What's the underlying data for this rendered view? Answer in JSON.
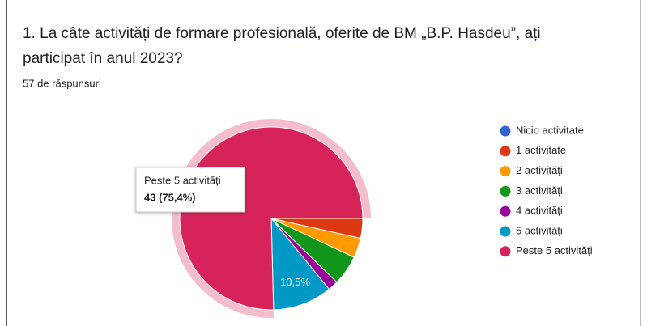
{
  "chart_data": {
    "type": "pie",
    "title": "1.  La câte activități de formare profesională, oferite de BM „B.P. Hasdeu”, ați",
    "title_line2": "participat în anul 2023?",
    "subtitle": "57 de răspunsuri",
    "categories": [
      "Nicio activitate",
      "1 activitate",
      "2 activități",
      "3 activități",
      "4 activități",
      "5 activități",
      "Peste 5 activități"
    ],
    "values": [
      0,
      3.5,
      3.5,
      5.3,
      1.8,
      10.5,
      75.4
    ],
    "value_labels": [
      null,
      null,
      null,
      null,
      null,
      "10,5%",
      "43 (75,4%)"
    ],
    "colors": [
      "#3366cc",
      "#dc3912",
      "#ff9900",
      "#109618",
      "#990099",
      "#0099c6",
      "#d6245a"
    ],
    "legend": "right"
  }
}
